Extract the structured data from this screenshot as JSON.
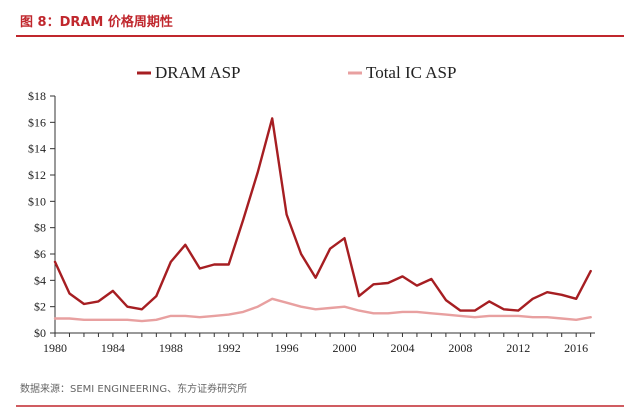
{
  "header": {
    "title": "图 8：DRAM 价格周期性",
    "title_color": "#c0272d"
  },
  "footer": {
    "source": "数据来源：SEMI ENGINEERING、东方证券研究所"
  },
  "chart_data": {
    "type": "line",
    "title": "",
    "xlabel": "",
    "ylabel": "",
    "xlim": [
      1980,
      2017.3
    ],
    "ylim": [
      0,
      18
    ],
    "grid": false,
    "legend_position": "top-center",
    "x_ticks": [
      1980,
      1984,
      1988,
      1992,
      1996,
      2000,
      2004,
      2008,
      2012,
      2016
    ],
    "y_ticks": [
      0,
      2,
      4,
      6,
      8,
      10,
      12,
      14,
      16,
      18
    ],
    "y_tick_labels": [
      "$0",
      "$2",
      "$4",
      "$6",
      "$8",
      "$10",
      "$12",
      "$14",
      "$16",
      "$18"
    ],
    "x": [
      1980,
      1981,
      1982,
      1983,
      1984,
      1985,
      1986,
      1987,
      1988,
      1989,
      1990,
      1991,
      1992,
      1993,
      1994,
      1995,
      1996,
      1997,
      1998,
      1999,
      2000,
      2001,
      2002,
      2003,
      2004,
      2005,
      2006,
      2007,
      2008,
      2009,
      2010,
      2011,
      2012,
      2013,
      2014,
      2015,
      2016,
      2017
    ],
    "series": [
      {
        "name": "DRAM ASP",
        "color": "#a61e22",
        "values": [
          5.4,
          3.0,
          2.2,
          2.4,
          3.2,
          2.0,
          1.8,
          2.8,
          5.4,
          6.7,
          4.9,
          5.2,
          5.2,
          8.6,
          12.2,
          16.3,
          9.0,
          6.0,
          4.2,
          6.4,
          7.2,
          2.8,
          3.7,
          3.8,
          4.3,
          3.6,
          4.1,
          2.5,
          1.7,
          1.7,
          2.4,
          1.8,
          1.7,
          2.6,
          3.1,
          2.9,
          2.6,
          4.7
        ]
      },
      {
        "name": "Total IC ASP",
        "color": "#e8a0a0",
        "values": [
          1.1,
          1.1,
          1.0,
          1.0,
          1.0,
          1.0,
          0.9,
          1.0,
          1.3,
          1.3,
          1.2,
          1.3,
          1.4,
          1.6,
          2.0,
          2.6,
          2.3,
          2.0,
          1.8,
          1.9,
          2.0,
          1.7,
          1.5,
          1.5,
          1.6,
          1.6,
          1.5,
          1.4,
          1.3,
          1.2,
          1.3,
          1.3,
          1.3,
          1.2,
          1.2,
          1.1,
          1.0,
          1.2
        ]
      }
    ]
  }
}
